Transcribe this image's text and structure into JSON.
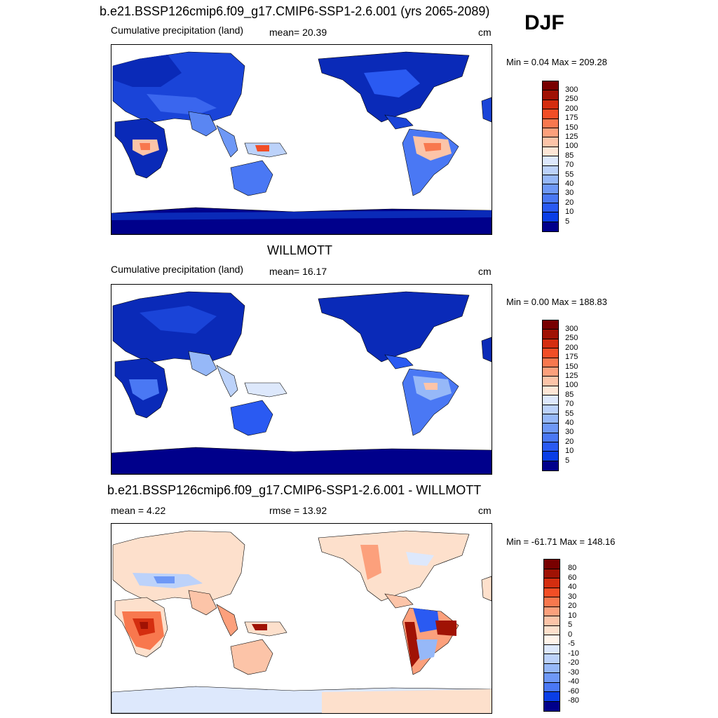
{
  "season": "DJF",
  "colors": {
    "ocean": "#ffffff",
    "precip_scale": [
      "#00008b",
      "#0020c8",
      "#0a3ee6",
      "#2a5af2",
      "#4a78f4",
      "#6e98f6",
      "#96b8f8",
      "#bcd2fa",
      "#dde8fc",
      "#fde6d6",
      "#fcc4a8",
      "#fca07c",
      "#f8784e",
      "#f24e26",
      "#d42e10",
      "#a01204",
      "#780000"
    ],
    "diff_scale": [
      "#00008b",
      "#0020c8",
      "#0a3ee6",
      "#2a5af2",
      "#4a78f4",
      "#6e98f6",
      "#96b8f8",
      "#bcd2fa",
      "#dde8fc",
      "#fff4ea",
      "#fde0cc",
      "#fcc4a8",
      "#fca07c",
      "#f8784e",
      "#f24e26",
      "#d42e10",
      "#a01204",
      "#780000"
    ]
  },
  "panels": [
    {
      "title": "b.e21.BSSP126cmip6.f09_g17.CMIP6-SSP1-2.6.001 (yrs 2065-2089)",
      "left_label": "Cumulative precipitation (land)",
      "center_label": "mean=  20.39",
      "units": "cm",
      "minmax": "Min =   0.04 Max = 209.28",
      "levels": [
        "300",
        "250",
        "200",
        "175",
        "150",
        "125",
        "100",
        "85",
        "70",
        "55",
        "40",
        "30",
        "20",
        "10",
        "5"
      ]
    },
    {
      "title": "WILLMOTT",
      "left_label": "Cumulative precipitation (land)",
      "center_label": "mean=  16.17",
      "units": "cm",
      "minmax": "Min =   0.00 Max = 188.83",
      "levels": [
        "300",
        "250",
        "200",
        "175",
        "150",
        "125",
        "100",
        "85",
        "70",
        "55",
        "40",
        "30",
        "20",
        "10",
        "5"
      ]
    },
    {
      "title": "b.e21.BSSP126cmip6.f09_g17.CMIP6-SSP1-2.6.001 - WILLMOTT",
      "left_label": "mean =   4.22",
      "center_label": "rmse =  13.92",
      "units": "cm",
      "minmax": "Min = -61.71 Max = 148.16",
      "levels": [
        "80",
        "60",
        "40",
        "30",
        "20",
        "10",
        "5",
        "0",
        "-5",
        "-10",
        "-20",
        "-30",
        "-40",
        "-60",
        "-80"
      ]
    }
  ]
}
